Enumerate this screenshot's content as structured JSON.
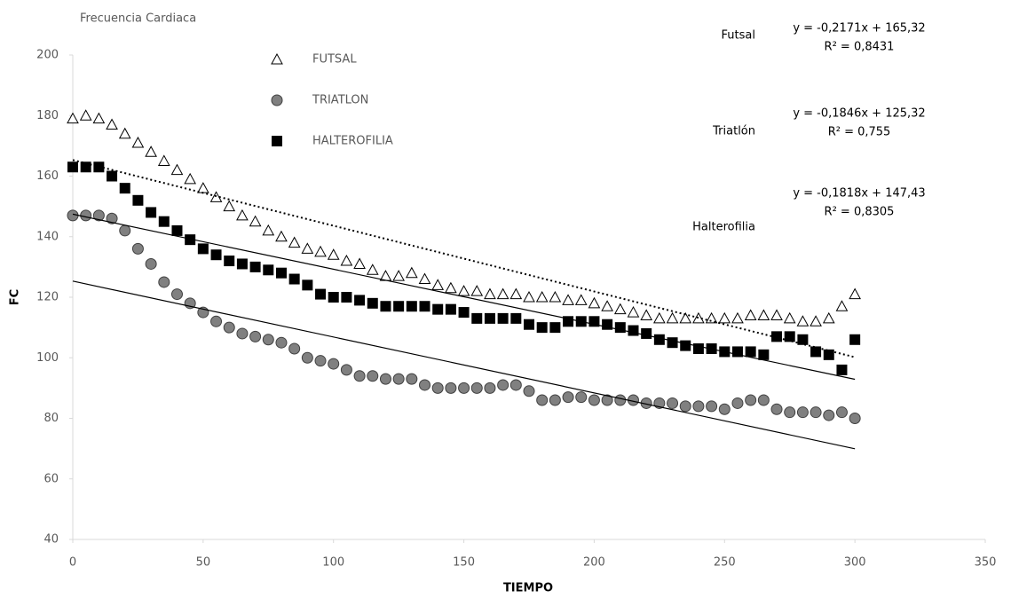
{
  "chart_data": {
    "type": "scatter",
    "title": "Frecuencia Cardiaca",
    "x_label": "TIEMPO",
    "y_label": "FC",
    "xlim": [
      0,
      350
    ],
    "xticks": [
      0,
      50,
      100,
      150,
      200,
      250,
      300,
      350
    ],
    "ylim": [
      40,
      200
    ],
    "yticks": [
      40,
      60,
      80,
      100,
      120,
      140,
      160,
      180,
      200
    ],
    "grid": false,
    "x": [
      0,
      5,
      10,
      15,
      20,
      25,
      30,
      35,
      40,
      45,
      50,
      55,
      60,
      65,
      70,
      75,
      80,
      85,
      90,
      95,
      100,
      105,
      110,
      115,
      120,
      125,
      130,
      135,
      140,
      145,
      150,
      155,
      160,
      165,
      170,
      175,
      180,
      185,
      190,
      195,
      200,
      205,
      210,
      215,
      220,
      225,
      230,
      235,
      240,
      245,
      250,
      255,
      260,
      265,
      270,
      275,
      280,
      285,
      290,
      295,
      300
    ],
    "series": [
      {
        "name": "FUTSAL",
        "marker": "triangle",
        "color": "#ffffff",
        "values": [
          179,
          180,
          179,
          177,
          174,
          171,
          168,
          165,
          162,
          159,
          156,
          153,
          150,
          147,
          145,
          142,
          140,
          138,
          136,
          135,
          134,
          132,
          131,
          129,
          127,
          127,
          128,
          126,
          124,
          123,
          122,
          122,
          121,
          121,
          121,
          120,
          120,
          120,
          119,
          119,
          118,
          117,
          116,
          115,
          114,
          113,
          113,
          113,
          113,
          113,
          113,
          113,
          114,
          114,
          114,
          113,
          112,
          112,
          113,
          117,
          121
        ],
        "trendline": {
          "slope": -0.2171,
          "intercept": 165.32,
          "style": "dotted",
          "label": "Futsal",
          "equation": "y = -0,2171x + 165,32",
          "r2": "R² = 0,8431"
        }
      },
      {
        "name": "TRIATLON",
        "marker": "circle",
        "color": "#808080",
        "values": [
          147,
          147,
          147,
          146,
          142,
          136,
          131,
          125,
          121,
          118,
          115,
          112,
          110,
          108,
          107,
          106,
          105,
          103,
          100,
          99,
          98,
          96,
          94,
          94,
          93,
          93,
          93,
          91,
          90,
          90,
          90,
          90,
          90,
          91,
          91,
          89,
          86,
          86,
          87,
          87,
          86,
          86,
          86,
          86,
          85,
          85,
          85,
          84,
          84,
          84,
          83,
          85,
          86,
          86,
          83,
          82,
          82,
          82,
          81,
          82,
          80
        ],
        "trendline": {
          "slope": -0.1846,
          "intercept": 125.32,
          "style": "solid",
          "label": "Triatlón",
          "equation": "y = -0,1846x + 125,32",
          "r2": "R² = 0,755"
        }
      },
      {
        "name": "HALTEROFILIA",
        "marker": "square",
        "color": "#000000",
        "values": [
          163,
          163,
          163,
          160,
          156,
          152,
          148,
          145,
          142,
          139,
          136,
          134,
          132,
          131,
          130,
          129,
          128,
          126,
          124,
          121,
          120,
          120,
          119,
          118,
          117,
          117,
          117,
          117,
          116,
          116,
          115,
          113,
          113,
          113,
          113,
          111,
          110,
          110,
          112,
          112,
          112,
          111,
          110,
          109,
          108,
          106,
          105,
          104,
          103,
          103,
          102,
          102,
          102,
          101,
          107,
          107,
          106,
          102,
          101,
          96,
          106
        ],
        "trendline": {
          "slope": -0.1818,
          "intercept": 147.43,
          "style": "solid",
          "label": "Halterofilia",
          "equation": "y = -0,1818x + 147,43",
          "r2": "R² = 0,8305"
        }
      }
    ]
  }
}
